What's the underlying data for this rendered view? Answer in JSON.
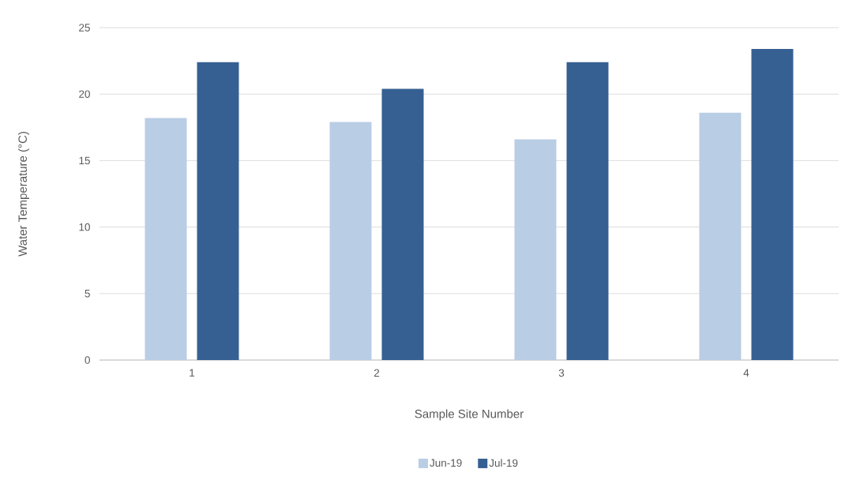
{
  "chart_data": {
    "type": "bar",
    "xlabel": "Sample Site Number",
    "ylabel": "Water Temperature (°C)",
    "categories": [
      "1",
      "2",
      "3",
      "4"
    ],
    "series": [
      {
        "name": "Jun-19",
        "color": "#b9cde5",
        "values": [
          18.2,
          17.9,
          16.6,
          18.6
        ]
      },
      {
        "name": "Jul-19",
        "color": "#366092",
        "values": [
          22.4,
          20.4,
          22.4,
          23.4
        ]
      }
    ],
    "ylim": [
      0,
      25
    ],
    "yticks": [
      0,
      5,
      10,
      15,
      20,
      25
    ],
    "grid": "y",
    "legend": "bottom"
  }
}
